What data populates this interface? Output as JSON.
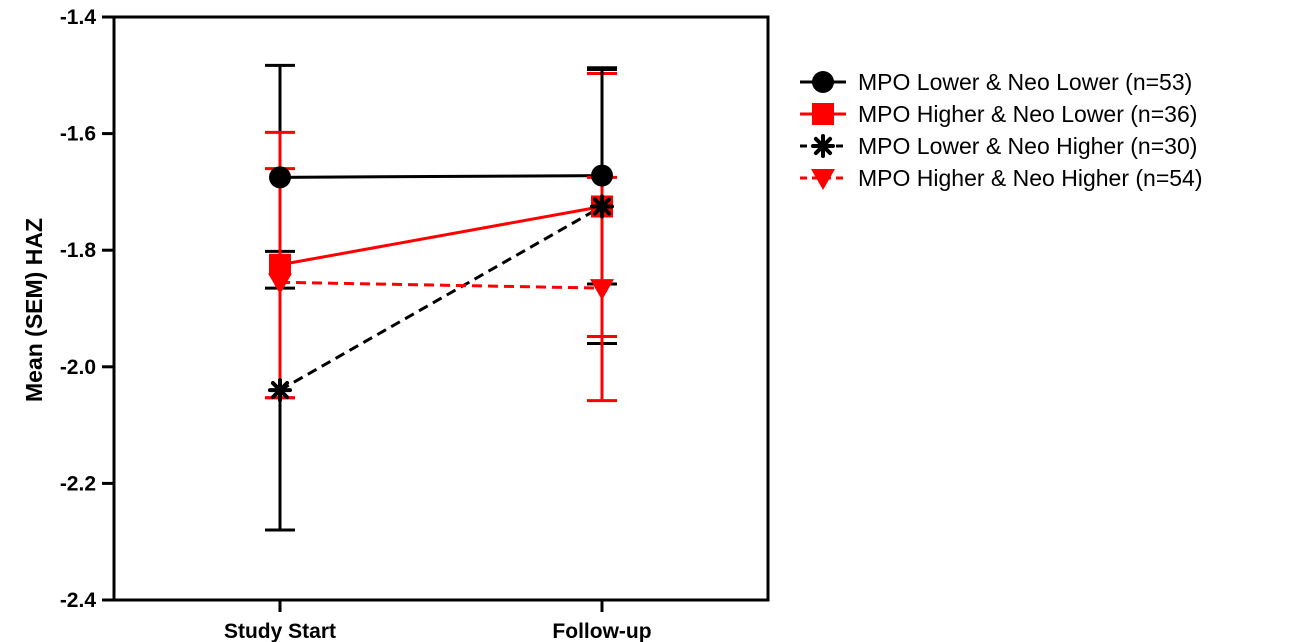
{
  "chart_data": {
    "type": "line",
    "title": "",
    "xlabel": "",
    "ylabel": "Mean (SEM) HAZ",
    "categories": [
      "Study Start",
      "Follow-up"
    ],
    "ylim": [
      -2.4,
      -1.4
    ],
    "yticks": [
      "-1.4",
      "-1.6",
      "-1.8",
      "-2.0",
      "-2.2",
      "-2.4"
    ],
    "grid": false,
    "legend_position": "right",
    "series": [
      {
        "name": "MPO Lower & Neo Lower (n=53)",
        "color": "#000000",
        "line_style": "solid",
        "marker": "circle",
        "values": [
          -1.675,
          -1.672
        ],
        "err_low": [
          -1.865,
          -1.858
        ],
        "err_high": [
          -1.483,
          -1.487
        ]
      },
      {
        "name": "MPO Higher & Neo Lower (n=36)",
        "color": "#ff0000",
        "line_style": "solid",
        "marker": "square",
        "values": [
          -1.825,
          -1.725
        ],
        "err_low": [
          -2.053,
          -1.948
        ],
        "err_high": [
          -1.598,
          -1.497
        ]
      },
      {
        "name": "MPO Lower & Neo Higher (n=30)",
        "color": "#000000",
        "line_style": "dashed",
        "marker": "asterisk",
        "values": [
          -2.04,
          -1.725
        ],
        "err_low": [
          -2.28,
          -1.96
        ],
        "err_high": [
          -1.802,
          -1.49
        ]
      },
      {
        "name": "MPO Higher & Neo Higher (n=54)",
        "color": "#ff0000",
        "line_style": "dashed",
        "marker": "triangle-down",
        "values": [
          -1.855,
          -1.865
        ],
        "err_low": [
          -2.053,
          -2.058
        ],
        "err_high": [
          -1.66,
          -1.675
        ]
      }
    ]
  }
}
